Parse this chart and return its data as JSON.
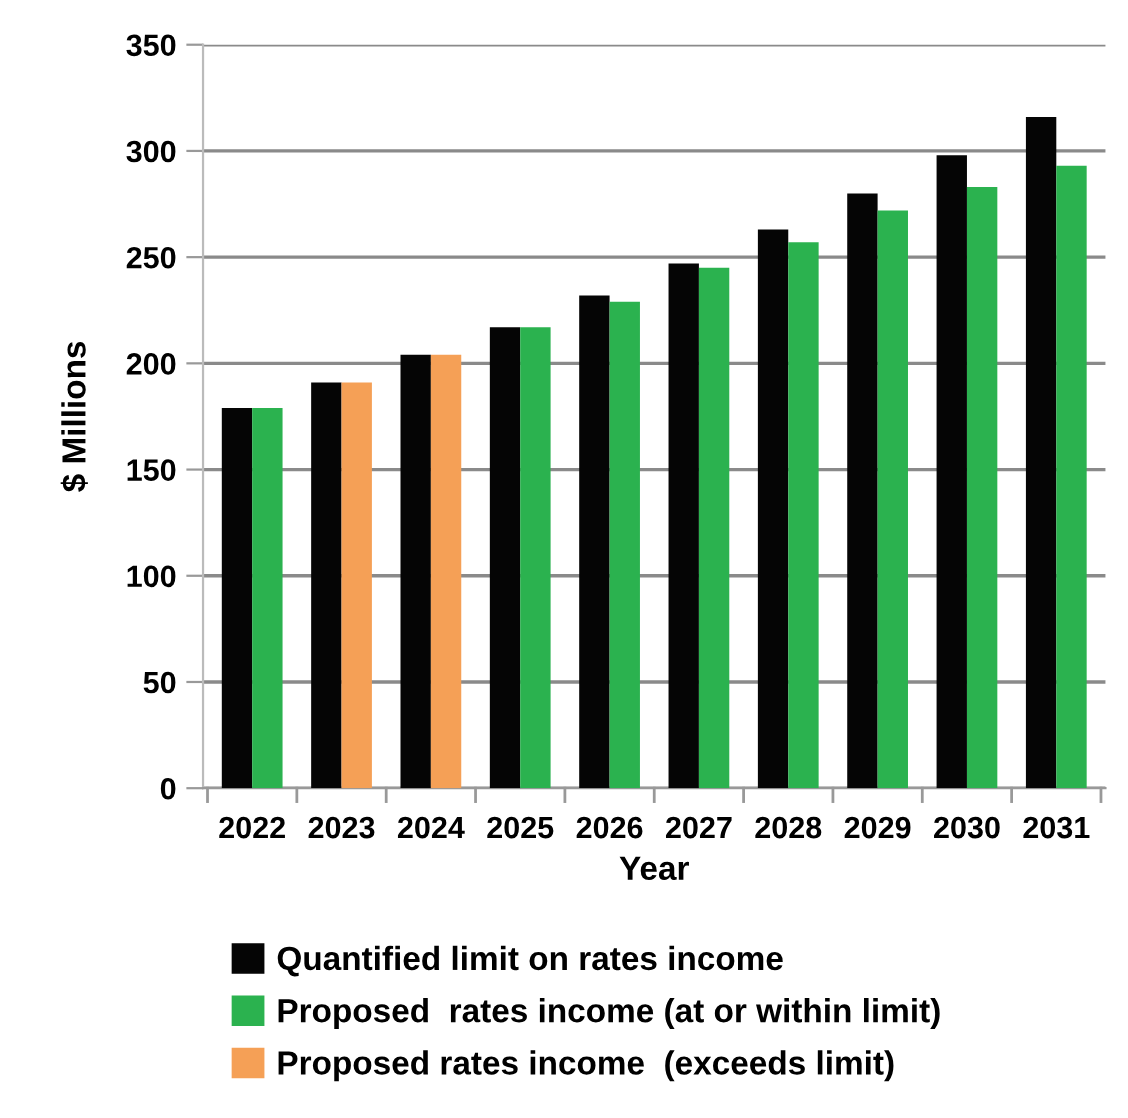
{
  "chart_data": {
    "type": "bar",
    "xlabel": "Year",
    "ylabel": "$ Millions",
    "categories": [
      "2022",
      "2023",
      "2024",
      "2025",
      "2026",
      "2027",
      "2028",
      "2029",
      "2030",
      "2031"
    ],
    "series": [
      {
        "name": "Quantified limit on rates income",
        "color": "#050505",
        "values": [
          179,
          191,
          204,
          217,
          232,
          247,
          263,
          280,
          298,
          316
        ]
      },
      {
        "name": "Proposed  rates income (at or within limit)",
        "color": "#2bb24f",
        "values": [
          179,
          null,
          null,
          217,
          229,
          245,
          257,
          272,
          283,
          293
        ]
      },
      {
        "name": "Proposed rates income  (exceeds limit)",
        "color": "#f5a056",
        "values": [
          null,
          191,
          204,
          null,
          null,
          null,
          null,
          null,
          null,
          null
        ]
      }
    ],
    "ylim": [
      0,
      350
    ],
    "yticks": [
      0,
      50,
      100,
      150,
      200,
      250,
      300,
      350
    ],
    "grid": "y",
    "legend": "bottom"
  }
}
